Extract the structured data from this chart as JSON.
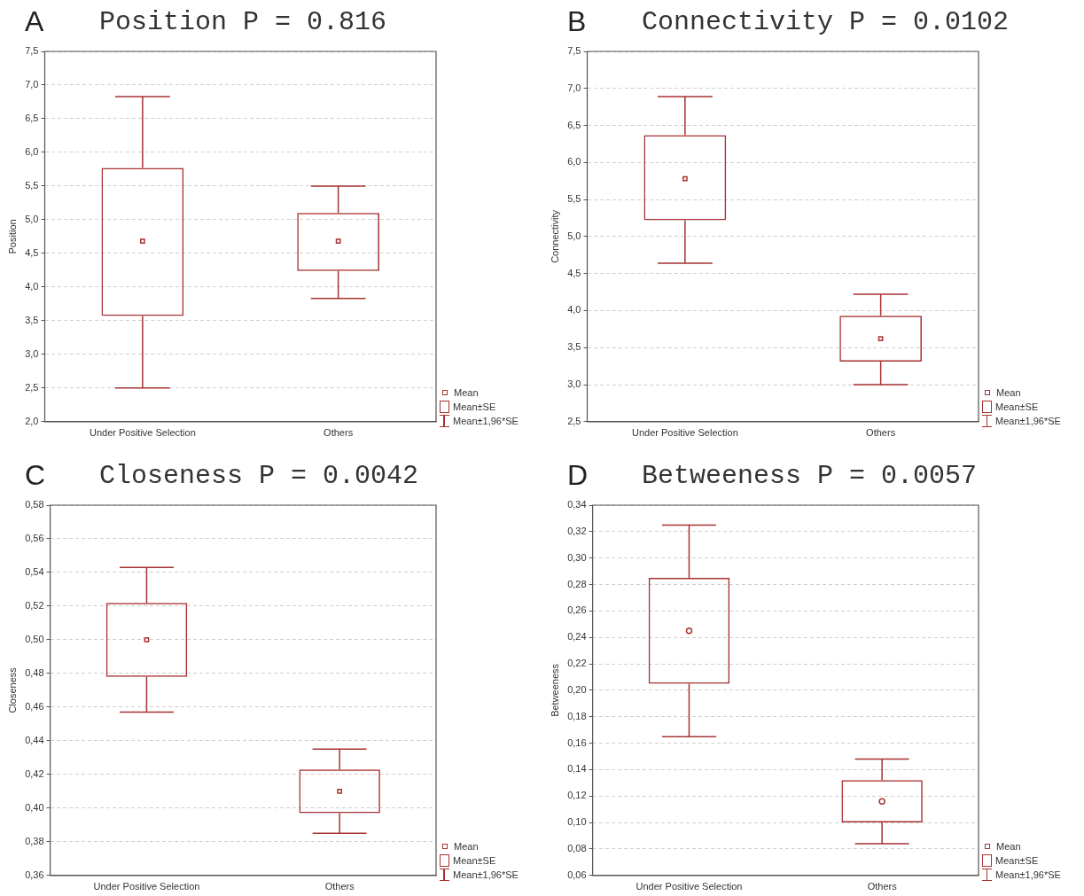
{
  "chart_data": [
    {
      "type": "box",
      "title": "Position P = 0.816",
      "ylabel": "Position",
      "categories": [
        "Under Positive Selection",
        "Others"
      ],
      "color": "#a83232",
      "marker": "square",
      "grid": "y",
      "boxes": [
        {
          "low": 2.5,
          "q1": 3.57,
          "median": 4.68,
          "q3": 5.77,
          "high": 6.83
        },
        {
          "low": 3.83,
          "q1": 4.24,
          "median": 4.68,
          "q3": 5.1,
          "high": 5.5
        }
      ],
      "ylim": [
        2.0,
        7.5
      ],
      "yticks": [
        {
          "value": 2.0,
          "label": "2,0"
        },
        {
          "value": 2.5,
          "label": "2,5"
        },
        {
          "value": 3.0,
          "label": "3,0"
        },
        {
          "value": 3.5,
          "label": "3,5"
        },
        {
          "value": 4.0,
          "label": "4,0"
        },
        {
          "value": 4.5,
          "label": "4,5"
        },
        {
          "value": 5.0,
          "label": "5,0"
        },
        {
          "value": 5.5,
          "label": "5,5"
        },
        {
          "value": 6.0,
          "label": "6,0"
        },
        {
          "value": 6.5,
          "label": "6,5"
        },
        {
          "value": 7.0,
          "label": "7,0"
        },
        {
          "value": 7.5,
          "label": "7,5"
        }
      ],
      "annotations": [
        "A",
        "Mean",
        "Mean±SE",
        "Mean±1,96*SE"
      ]
    },
    {
      "type": "box",
      "title": "Connectivity P = 0.0102",
      "ylabel": "Connectivity",
      "categories": [
        "Under Positive Selection",
        "Others"
      ],
      "color": "#a83232",
      "marker": "square",
      "grid": "y",
      "boxes": [
        {
          "low": 4.64,
          "q1": 5.22,
          "median": 5.78,
          "q3": 6.37,
          "high": 6.89
        },
        {
          "low": 3.0,
          "q1": 3.31,
          "median": 3.62,
          "q3": 3.93,
          "high": 4.22
        }
      ],
      "ylim": [
        2.5,
        7.5
      ],
      "yticks": [
        {
          "value": 2.5,
          "label": "2,5"
        },
        {
          "value": 3.0,
          "label": "3,0"
        },
        {
          "value": 3.5,
          "label": "3,5"
        },
        {
          "value": 4.0,
          "label": "4,0"
        },
        {
          "value": 4.5,
          "label": "4,5"
        },
        {
          "value": 5.0,
          "label": "5,0"
        },
        {
          "value": 5.5,
          "label": "5,5"
        },
        {
          "value": 6.0,
          "label": "6,0"
        },
        {
          "value": 6.5,
          "label": "6,5"
        },
        {
          "value": 7.0,
          "label": "7,0"
        },
        {
          "value": 7.5,
          "label": "7,5"
        }
      ],
      "annotations": [
        "B",
        "Mean",
        "Mean±SE",
        "Mean±1,96*SE"
      ]
    },
    {
      "type": "box",
      "title": "Closeness P = 0.0042",
      "ylabel": "Closeness",
      "categories": [
        "Under Positive Selection",
        "Others"
      ],
      "color": "#a83232",
      "marker": "square",
      "grid": "y",
      "boxes": [
        {
          "low": 0.457,
          "q1": 0.478,
          "median": 0.5,
          "q3": 0.522,
          "high": 0.543
        },
        {
          "low": 0.385,
          "q1": 0.397,
          "median": 0.41,
          "q3": 0.423,
          "high": 0.435
        }
      ],
      "ylim": [
        0.36,
        0.58
      ],
      "yticks": [
        {
          "value": 0.36,
          "label": "0,36"
        },
        {
          "value": 0.38,
          "label": "0,38"
        },
        {
          "value": 0.4,
          "label": "0,40"
        },
        {
          "value": 0.42,
          "label": "0,42"
        },
        {
          "value": 0.44,
          "label": "0,44"
        },
        {
          "value": 0.46,
          "label": "0,46"
        },
        {
          "value": 0.48,
          "label": "0,48"
        },
        {
          "value": 0.5,
          "label": "0,50"
        },
        {
          "value": 0.52,
          "label": "0,52"
        },
        {
          "value": 0.54,
          "label": "0,54"
        },
        {
          "value": 0.56,
          "label": "0,56"
        },
        {
          "value": 0.58,
          "label": "0,58"
        }
      ],
      "annotations": [
        "C",
        "Mean",
        "Mean±SE",
        "Mean±1,96*SE"
      ]
    },
    {
      "type": "box",
      "title": "Betweeness P = 0.0057",
      "ylabel": "Betweeness",
      "categories": [
        "Under Positive Selection",
        "Others"
      ],
      "color": "#a83232",
      "marker": "circle",
      "grid": "y",
      "boxes": [
        {
          "low": 0.165,
          "q1": 0.205,
          "median": 0.245,
          "q3": 0.285,
          "high": 0.325
        },
        {
          "low": 0.084,
          "q1": 0.1,
          "median": 0.116,
          "q3": 0.132,
          "high": 0.148
        }
      ],
      "ylim": [
        0.06,
        0.34
      ],
      "yticks": [
        {
          "value": 0.06,
          "label": "0,06"
        },
        {
          "value": 0.08,
          "label": "0,08"
        },
        {
          "value": 0.1,
          "label": "0,10"
        },
        {
          "value": 0.12,
          "label": "0,12"
        },
        {
          "value": 0.14,
          "label": "0,14"
        },
        {
          "value": 0.16,
          "label": "0,16"
        },
        {
          "value": 0.18,
          "label": "0,18"
        },
        {
          "value": 0.2,
          "label": "0,20"
        },
        {
          "value": 0.22,
          "label": "0,22"
        },
        {
          "value": 0.24,
          "label": "0,24"
        },
        {
          "value": 0.26,
          "label": "0,26"
        },
        {
          "value": 0.28,
          "label": "0,28"
        },
        {
          "value": 0.3,
          "label": "0,30"
        },
        {
          "value": 0.32,
          "label": "0,32"
        },
        {
          "value": 0.34,
          "label": "0,34"
        }
      ],
      "annotations": [
        "D",
        "Mean",
        "Mean±SE",
        "Mean±1,96*SE"
      ]
    }
  ]
}
